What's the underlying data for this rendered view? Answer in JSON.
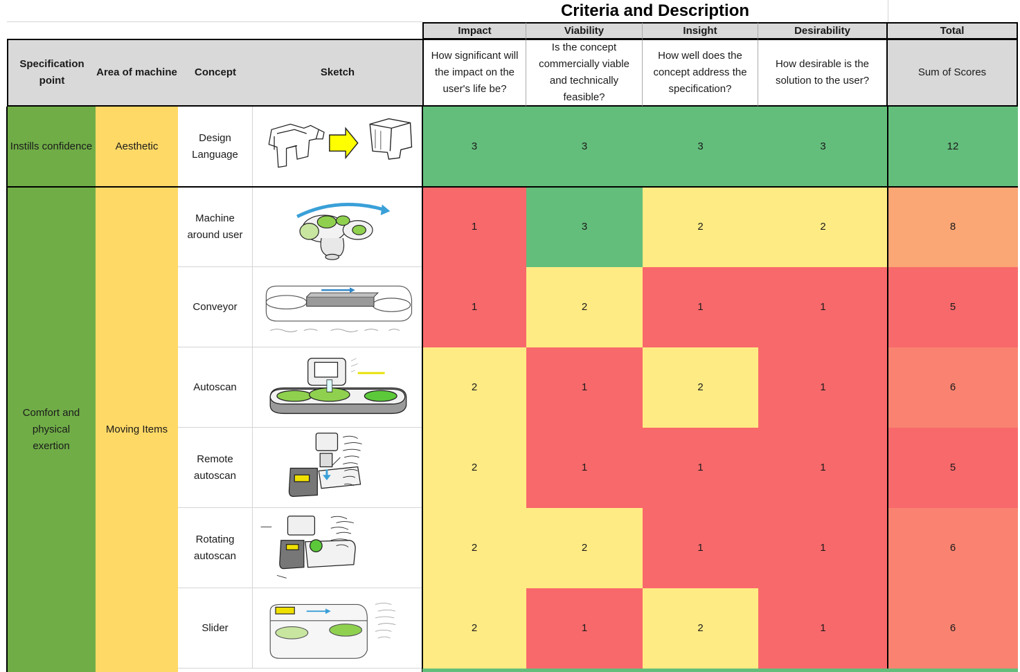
{
  "title": "Criteria and Description",
  "colors": {
    "green": "#63be7b",
    "specGreen": "#70ad47",
    "yellow": "#ffd966",
    "scoreYellow": "#ffeb84",
    "red": "#f8696b",
    "orange8": "#faa675",
    "orange6": "#f98370",
    "header": "#d9d9d9"
  },
  "criteria": [
    {
      "name": "Impact",
      "description": "How significant will the impact on the user's life be?"
    },
    {
      "name": "Viability",
      "description": "Is the concept commercially viable and technically feasible?"
    },
    {
      "name": "Insight",
      "description": "How well does the concept address the specification?"
    },
    {
      "name": "Desirability",
      "description": "How desirable is the solution to the user?"
    },
    {
      "name": "Total",
      "description": "Sum of Scores"
    }
  ],
  "columns": {
    "spec": "Specification point",
    "area": "Area of machine",
    "concept": "Concept",
    "sketch": "Sketch"
  },
  "groups": [
    {
      "spec": "Instills confidence",
      "area": "Aesthetic"
    },
    {
      "spec": "Comfort and physical exertion",
      "area": "Moving Items"
    }
  ],
  "rows": [
    {
      "concept": "Design Language",
      "sketch": "design-language-sketch",
      "scores": [
        3,
        3,
        3,
        3
      ],
      "total": 12
    },
    {
      "concept": "Machine around user",
      "sketch": "machine-around-user-sketch",
      "scores": [
        1,
        3,
        2,
        2
      ],
      "total": 8
    },
    {
      "concept": "Conveyor",
      "sketch": "conveyor-sketch",
      "scores": [
        1,
        2,
        1,
        1
      ],
      "total": 5
    },
    {
      "concept": "Autoscan",
      "sketch": "autoscan-sketch",
      "scores": [
        2,
        1,
        2,
        1
      ],
      "total": 6
    },
    {
      "concept": "Remote autoscan",
      "sketch": "remote-autoscan-sketch",
      "scores": [
        2,
        1,
        1,
        1
      ],
      "total": 5
    },
    {
      "concept": "Rotating autoscan",
      "sketch": "rotating-autoscan-sketch",
      "scores": [
        2,
        2,
        1,
        1
      ],
      "total": 6
    },
    {
      "concept": "Slider",
      "sketch": "slider-sketch",
      "scores": [
        2,
        1,
        2,
        1
      ],
      "total": 6
    }
  ]
}
